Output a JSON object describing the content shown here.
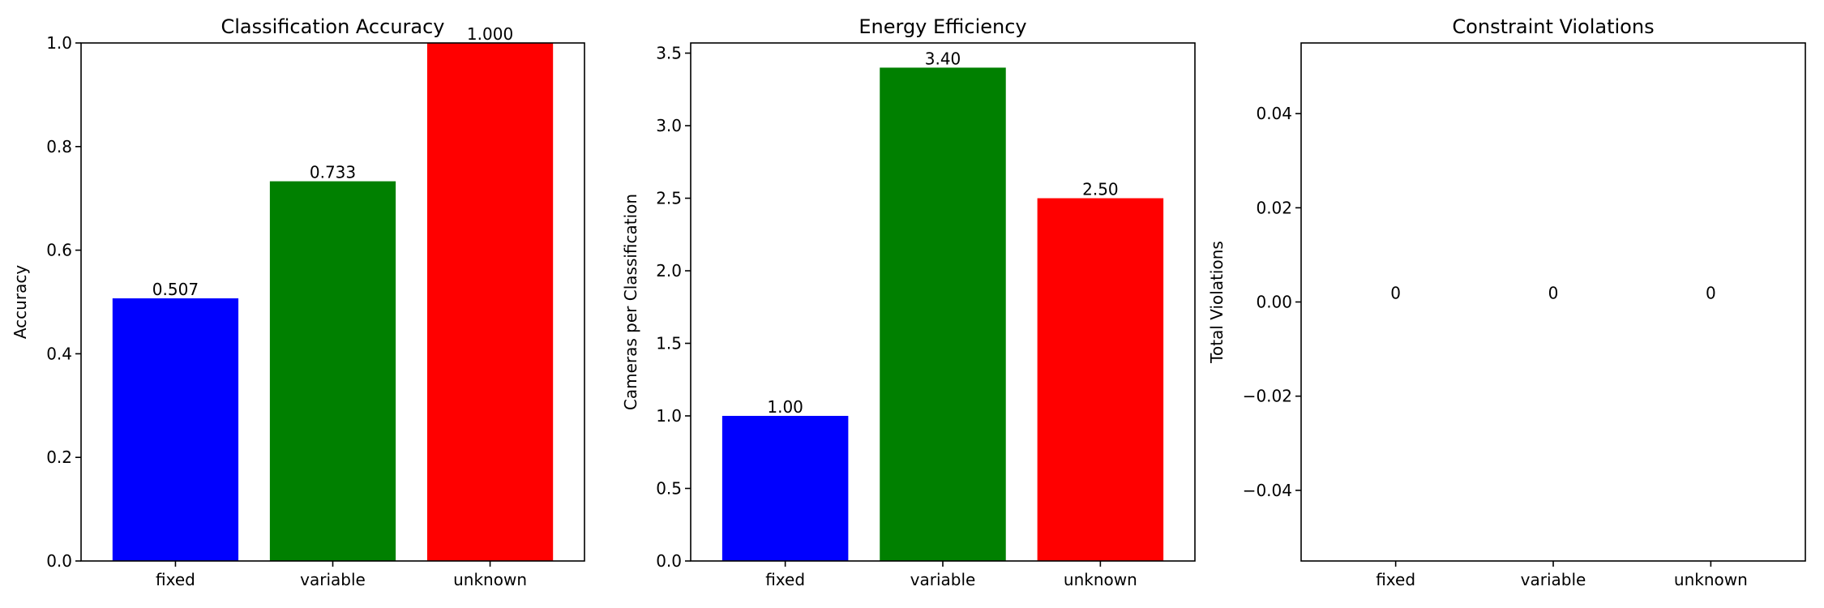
{
  "chart_data": [
    {
      "type": "bar",
      "title": "Classification Accuracy",
      "xlabel": "",
      "ylabel": "Accuracy",
      "categories": [
        "fixed",
        "variable",
        "unknown"
      ],
      "values": [
        0.507,
        0.733,
        1.0
      ],
      "value_labels": [
        "0.507",
        "0.733",
        "1.000"
      ],
      "colors": [
        "#0000ff",
        "#008000",
        "#ff0000"
      ],
      "ylim": [
        0,
        1.0
      ],
      "yticks": [
        0.0,
        0.2,
        0.4,
        0.6,
        0.8,
        1.0
      ],
      "ytick_labels": [
        "0.0",
        "0.2",
        "0.4",
        "0.6",
        "0.8",
        "1.0"
      ],
      "grid": false
    },
    {
      "type": "bar",
      "title": "Energy Efficiency",
      "xlabel": "",
      "ylabel": "Cameras per Classification",
      "categories": [
        "fixed",
        "variable",
        "unknown"
      ],
      "values": [
        1.0,
        3.4,
        2.5
      ],
      "value_labels": [
        "1.00",
        "3.40",
        "2.50"
      ],
      "colors": [
        "#0000ff",
        "#008000",
        "#ff0000"
      ],
      "ylim": [
        0,
        3.57
      ],
      "yticks": [
        0.0,
        0.5,
        1.0,
        1.5,
        2.0,
        2.5,
        3.0,
        3.5
      ],
      "ytick_labels": [
        "0.0",
        "0.5",
        "1.0",
        "1.5",
        "2.0",
        "2.5",
        "3.0",
        "3.5"
      ],
      "grid": false
    },
    {
      "type": "bar",
      "title": "Constraint Violations",
      "xlabel": "",
      "ylabel": "Total Violations",
      "categories": [
        "fixed",
        "variable",
        "unknown"
      ],
      "values": [
        0,
        0,
        0
      ],
      "value_labels": [
        "0",
        "0",
        "0"
      ],
      "colors": [
        "#0000ff",
        "#008000",
        "#ff0000"
      ],
      "ylim": [
        -0.055,
        0.055
      ],
      "yticks": [
        -0.04,
        -0.02,
        0.0,
        0.02,
        0.04
      ],
      "ytick_labels": [
        "−0.04",
        "−0.02",
        "0.00",
        "0.02",
        "0.04"
      ],
      "grid": false
    }
  ]
}
